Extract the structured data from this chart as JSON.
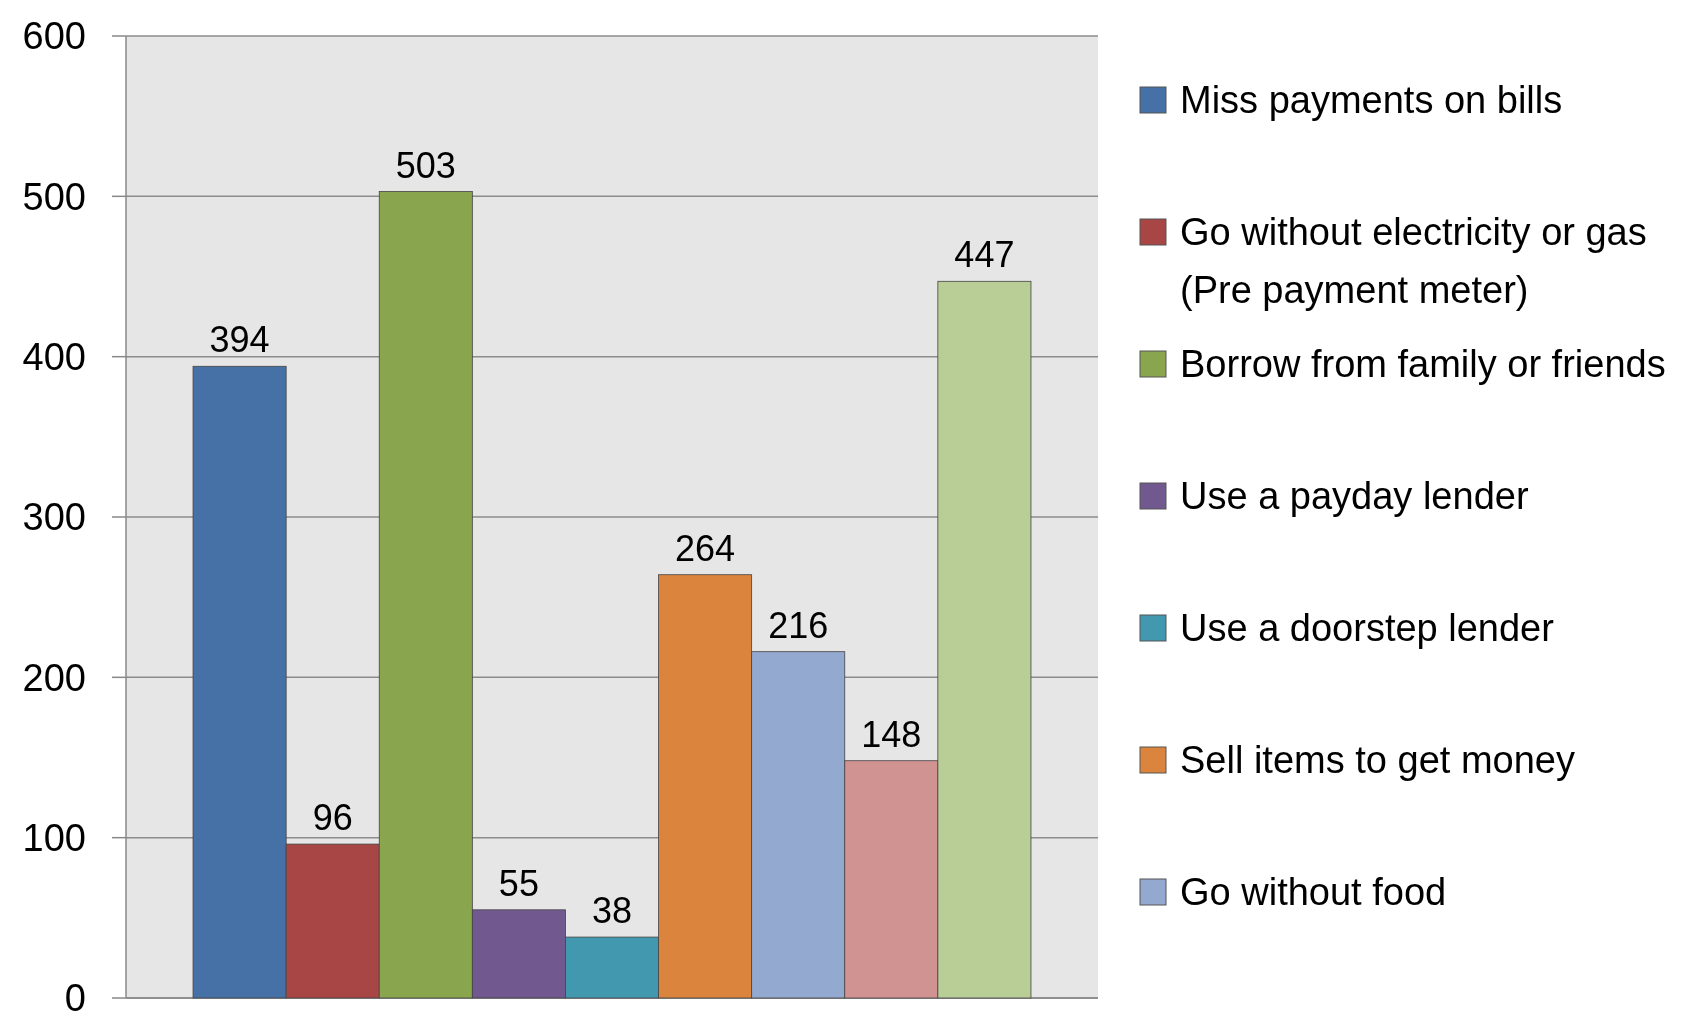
{
  "chart_data": {
    "type": "bar",
    "categories": [
      null
    ],
    "series": [
      {
        "name": "Miss payments on bills",
        "color": "#4571a6",
        "values": [
          394
        ]
      },
      {
        "name": "Go without electricity or gas (Pre payment meter)",
        "color": "#a84545",
        "values": [
          96
        ]
      },
      {
        "name": "Borrow from family or friends",
        "color": "#89a54e",
        "values": [
          503
        ]
      },
      {
        "name": "Use a payday lender",
        "color": "#71588f",
        "values": [
          55
        ]
      },
      {
        "name": "Use a doorstep lender",
        "color": "#4198af",
        "values": [
          38
        ]
      },
      {
        "name": "Sell items to get money",
        "color": "#db843d",
        "values": [
          264
        ]
      },
      {
        "name": "Go without food",
        "color": "#93a9cf",
        "values": [
          216
        ]
      },
      {
        "color": "#d19392",
        "values": [
          148
        ]
      },
      {
        "color": "#b9cd96",
        "values": [
          447
        ]
      }
    ],
    "ylim": [
      0,
      600
    ],
    "yticks": [
      0,
      100,
      200,
      300,
      400,
      500,
      600
    ],
    "grid": "y",
    "legend": "right",
    "data_labels": true
  }
}
